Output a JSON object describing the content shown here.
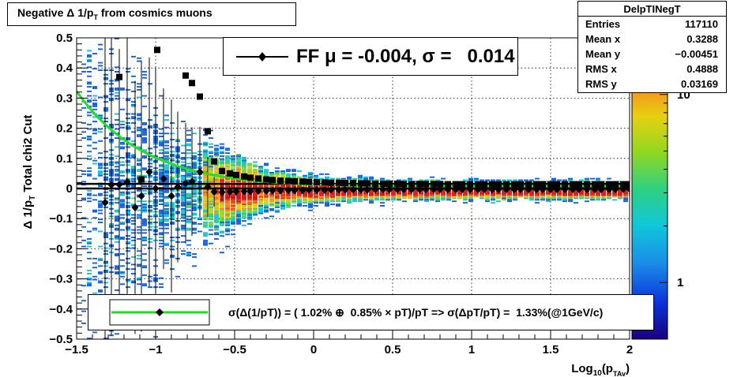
{
  "title": "Negative Δ 1/p",
  "title_sub": "T",
  "title_suffix": " from cosmics muons",
  "stats": {
    "name": "DelpTINegT",
    "rows": [
      {
        "label": "Entries",
        "value": "117110"
      },
      {
        "label": "Mean x",
        "value": "0.3288"
      },
      {
        "label": "Mean y",
        "value": "−0.00451"
      },
      {
        "label": "RMS x",
        "value": "0.4888"
      },
      {
        "label": "RMS y",
        "value": "0.03169"
      }
    ]
  },
  "ff_legend": "FF μ = -0.004, σ =   0.014",
  "fit_legend": "σ(Δ(1/pT)) = ( 1.02% ⊕  0.85% × pT)/pT => σ(ΔpT/pT) =  1.33%(@1GeV/c)",
  "colors": {
    "fit_curve": "#22dd22",
    "markers": "#000000"
  },
  "chart_data": {
    "type": "heatmap",
    "xlabel": "Log",
    "xlabel_sub1": "10",
    "xlabel_mid": "(p",
    "xlabel_sub2": "TAv",
    "xlabel_end": ")",
    "ylabel": "Δ 1/p",
    "ylabel_sub": "T",
    "ylabel_suffix": "  Total chi2 Cut",
    "xlim": [
      -1.5,
      2
    ],
    "ylim": [
      -0.5,
      0.5
    ],
    "x_ticks": [
      -1.5,
      -1,
      -0.5,
      0,
      0.5,
      1,
      1.5,
      2
    ],
    "x_tick_labels": [
      "−1.5",
      "−1",
      "−0.5",
      "0",
      "0.5",
      "1",
      "1.5",
      "2"
    ],
    "y_ticks": [
      -0.5,
      -0.4,
      -0.3,
      -0.2,
      -0.1,
      0,
      0.1,
      0.2,
      0.3,
      0.4,
      0.5
    ],
    "y_tick_labels": [
      "−0.5",
      "−0.4",
      "−0.3",
      "−0.2",
      "−0.1",
      "0",
      "0.1",
      "0.2",
      "0.3",
      "0.4",
      "0.5"
    ],
    "grid": true,
    "colorbar": {
      "scale": "log",
      "min": 0.5,
      "max": 20,
      "labels": [
        {
          "value": 1,
          "text": "1"
        },
        {
          "value": 10,
          "text": "10"
        }
      ]
    },
    "density_sigma": {
      "a": 0.0102,
      "b": 0.0085
    },
    "series": [
      {
        "name": "mean",
        "marker": "diamond",
        "x": [
          -1.32,
          -1.28,
          -1.23,
          -1.18,
          -1.13,
          -1.09,
          -1.04,
          -1.0,
          -0.95,
          -0.9,
          -0.86,
          -0.81,
          -0.77,
          -0.72,
          -0.67,
          -0.63,
          -0.58,
          -0.53,
          -0.49,
          -0.44,
          -0.4,
          -0.35,
          -0.3,
          -0.26,
          -0.21,
          -0.16,
          -0.12,
          -0.07,
          -0.03,
          0.02,
          0.07,
          0.11,
          0.16,
          0.2,
          0.25,
          0.3,
          0.34,
          0.39,
          0.44,
          0.48,
          0.53,
          0.57,
          0.62,
          0.67,
          0.71,
          0.76,
          0.8,
          0.85,
          0.9,
          0.94,
          0.99,
          1.04,
          1.08,
          1.13,
          1.17,
          1.22,
          1.27,
          1.31,
          1.36,
          1.41,
          1.45,
          1.5,
          1.54,
          1.59,
          1.64,
          1.68,
          1.73,
          1.78,
          1.82,
          1.87,
          1.91,
          1.96,
          2.0
        ],
        "y": [
          -0.047,
          0.012,
          0.013,
          0.022,
          -0.063,
          -0.025,
          0.055,
          0.0,
          0.032,
          -0.025,
          0.005,
          0.017,
          0.023,
          0.055,
          0.005,
          -0.011,
          -0.012,
          -0.011,
          -0.01,
          -0.009,
          -0.009,
          -0.008,
          -0.008,
          -0.007,
          -0.007,
          -0.006,
          -0.006,
          -0.006,
          -0.005,
          -0.005,
          -0.005,
          -0.004,
          -0.004,
          -0.004,
          -0.004,
          -0.004,
          -0.004,
          -0.003,
          -0.003,
          -0.003,
          -0.003,
          -0.003,
          -0.003,
          -0.003,
          -0.003,
          -0.003,
          -0.003,
          -0.003,
          -0.003,
          -0.003,
          -0.003,
          -0.003,
          -0.003,
          -0.003,
          -0.003,
          -0.003,
          -0.003,
          -0.003,
          -0.003,
          -0.003,
          -0.003,
          -0.003,
          -0.003,
          -0.003,
          -0.003,
          -0.003,
          -0.003,
          -0.003,
          -0.003,
          -0.003,
          -0.003,
          -0.002,
          -0.002
        ],
        "yerr": [
          0.55,
          0.5,
          0.45,
          0.48,
          0.42,
          0.45,
          0.38,
          0.4,
          0.3,
          0.32,
          0.25,
          0.2,
          0.18,
          0.15,
          0.1,
          0.05,
          0.03,
          0.02,
          0.015,
          0.01,
          0.008,
          0.006,
          0.005,
          0.004,
          0.004,
          0.003,
          0.003,
          0.003,
          0.002,
          0.002,
          0.002,
          0.002,
          0.002,
          0.002,
          0.002,
          0.002,
          0.002,
          0.002,
          0.002,
          0.002,
          0.002,
          0.002,
          0.002,
          0.002,
          0.002,
          0.002,
          0.002,
          0.002,
          0.002,
          0.002,
          0.002,
          0.002,
          0.002,
          0.002,
          0.002,
          0.002,
          0.002,
          0.002,
          0.002,
          0.002,
          0.002,
          0.002,
          0.002,
          0.002,
          0.002,
          0.002,
          0.002,
          0.002,
          0.002,
          0.002,
          0.002,
          0.002,
          0.002
        ]
      },
      {
        "name": "sigma",
        "marker": "square",
        "x": [
          -1.23,
          -1.09,
          -0.99,
          -0.81,
          -0.77,
          -0.72,
          -0.67,
          -0.63,
          -0.58,
          -0.53,
          -0.49,
          -0.44,
          -0.4,
          -0.35,
          -0.3,
          -0.26,
          -0.21,
          -0.16,
          -0.12,
          -0.07,
          -0.03,
          0.02,
          0.07,
          0.11,
          0.16,
          0.2,
          0.25,
          0.3,
          0.34,
          0.39,
          0.44,
          0.48,
          0.53,
          0.57,
          0.62,
          0.67,
          0.71,
          0.76,
          0.8,
          0.85,
          0.9,
          0.94,
          0.99,
          1.04,
          1.08,
          1.13,
          1.17,
          1.22,
          1.27,
          1.31,
          1.36,
          1.41,
          1.45,
          1.5,
          1.54,
          1.59,
          1.64,
          1.68,
          1.73,
          1.78,
          1.82,
          1.87,
          1.91,
          1.96,
          2.0
        ],
        "y": [
          0.37,
          0.03,
          0.46,
          0.375,
          0.35,
          0.305,
          0.19,
          0.09,
          0.058,
          0.05,
          0.045,
          0.04,
          0.036,
          0.033,
          0.03,
          0.028,
          0.026,
          0.025,
          0.024,
          0.023,
          0.022,
          0.021,
          0.02,
          0.019,
          0.019,
          0.018,
          0.018,
          0.017,
          0.017,
          0.016,
          0.016,
          0.016,
          0.016,
          0.015,
          0.015,
          0.015,
          0.015,
          0.015,
          0.015,
          0.014,
          0.014,
          0.014,
          0.014,
          0.014,
          0.014,
          0.014,
          0.014,
          0.014,
          0.014,
          0.014,
          0.014,
          0.014,
          0.014,
          0.014,
          0.014,
          0.014,
          0.014,
          0.014,
          0.014,
          0.014,
          0.014,
          0.014,
          0.014,
          0.014,
          0.014
        ]
      },
      {
        "name": "fit",
        "marker": "line"
      }
    ]
  }
}
